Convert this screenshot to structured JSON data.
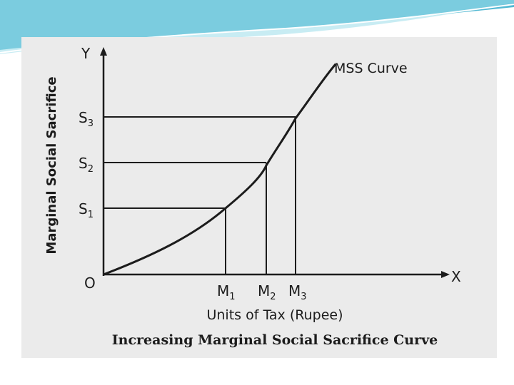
{
  "theme": {
    "accent": "#2aa8c8",
    "accent_light": "#9adcea",
    "figure_bg": "#ebebeb",
    "ink": "#1c1c1c"
  },
  "diagram": {
    "y_axis_letter": "Y",
    "x_axis_letter": "X",
    "y_axis_title": "Marginal Social Sacrifice",
    "x_axis_title": "Units of Tax (Rupee)",
    "origin_label": "O",
    "curve_label": "MSS Curve",
    "points": [
      {
        "s_label": "S",
        "s_sub": "1",
        "m_label": "M",
        "m_sub": "1"
      },
      {
        "s_label": "S",
        "s_sub": "2",
        "m_label": "M",
        "m_sub": "2"
      },
      {
        "s_label": "S",
        "s_sub": "3",
        "m_label": "M",
        "m_sub": "3"
      }
    ],
    "caption": "Increasing Marginal Social Sacrifice Curve"
  }
}
